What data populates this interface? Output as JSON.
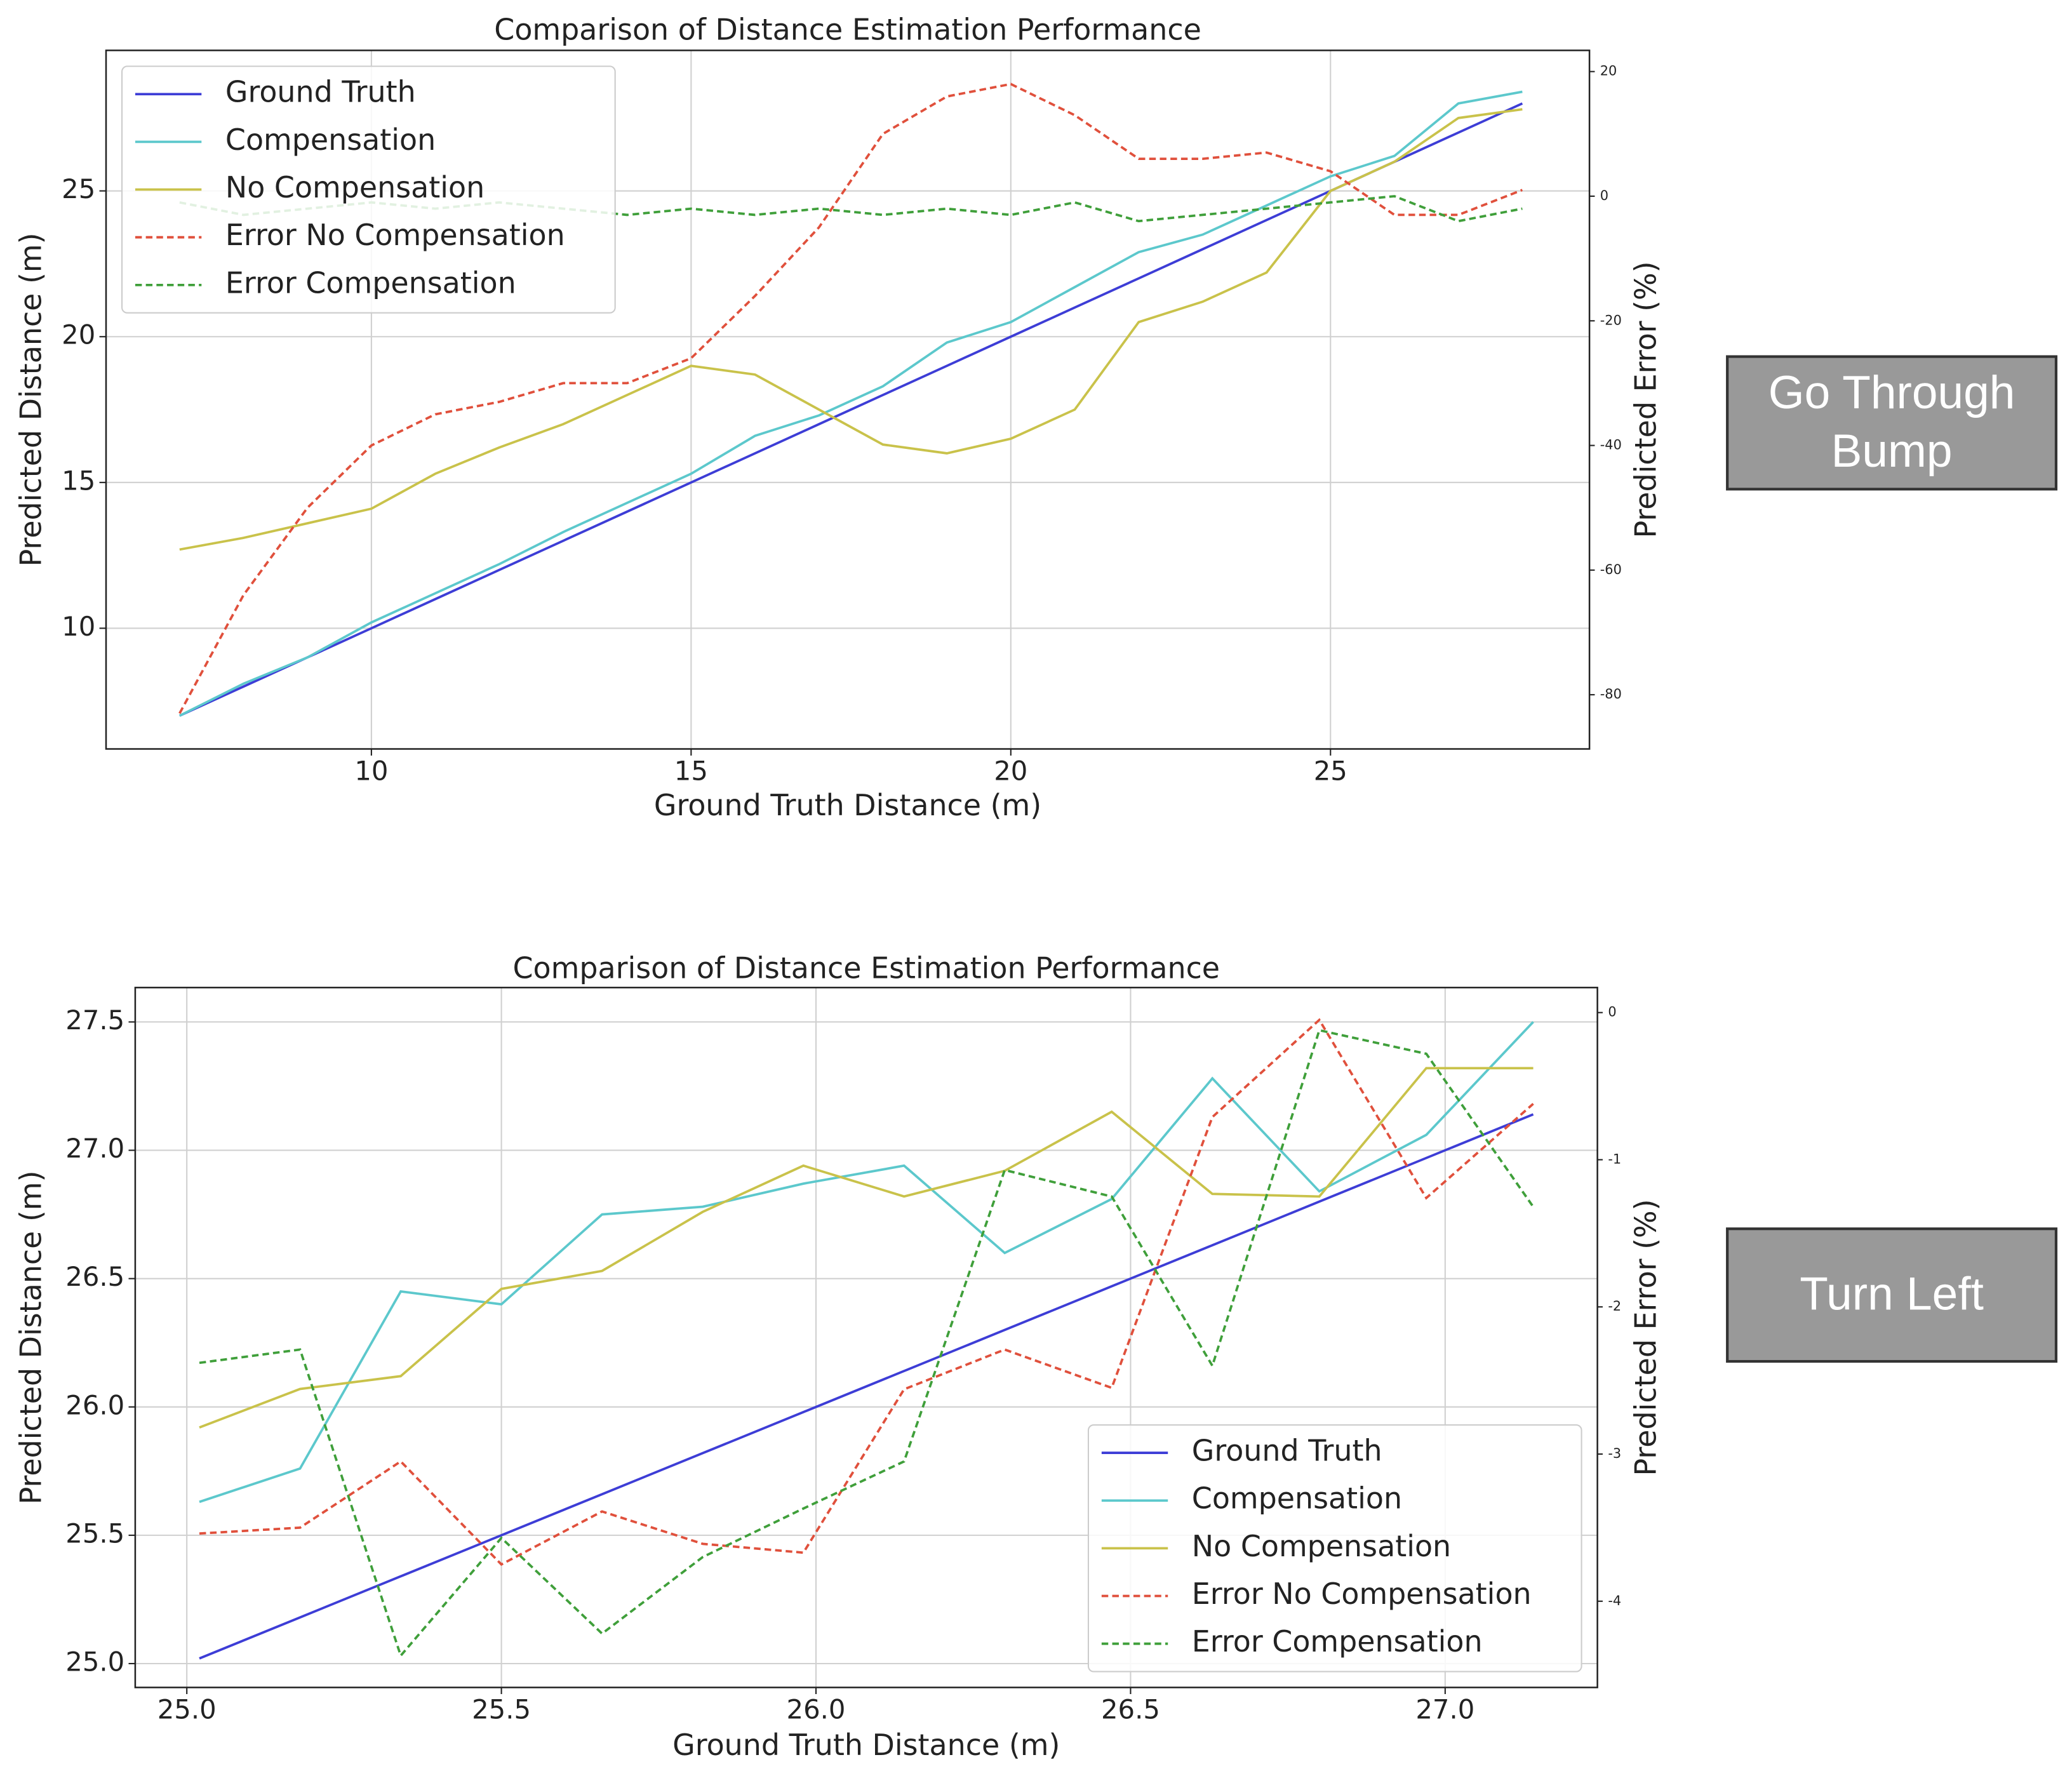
{
  "chart_data": [
    {
      "type": "line",
      "title": "Comparison of Distance Estimation Performance",
      "xlabel": "Ground Truth Distance (m)",
      "ylabel": "Predicted Distance (m)",
      "y2label": "Predicted Error (%)",
      "x": [
        7,
        8,
        9,
        10,
        11,
        12,
        13,
        14,
        15,
        16,
        17,
        18,
        19,
        20,
        21,
        22,
        23,
        24,
        25,
        26,
        27,
        28
      ],
      "series": [
        {
          "name": "Ground Truth",
          "color": "#3d3dd6",
          "linestyle": "solid",
          "values": [
            7,
            8,
            9,
            10,
            11,
            12,
            13,
            14,
            15,
            16,
            17,
            18,
            19,
            20,
            21,
            22,
            23,
            24,
            25,
            26,
            27,
            28
          ]
        },
        {
          "name": "Compensation",
          "color": "#5cc8cc",
          "linestyle": "solid",
          "values": [
            7.0,
            8.1,
            9.0,
            10.2,
            11.2,
            12.2,
            13.3,
            14.3,
            15.3,
            16.6,
            17.3,
            18.3,
            19.8,
            20.5,
            21.7,
            22.9,
            23.5,
            24.5,
            25.5,
            26.2,
            28.0,
            28.4
          ]
        },
        {
          "name": "No Compensation",
          "color": "#c9c24a",
          "linestyle": "solid",
          "values": [
            12.7,
            13.1,
            13.6,
            14.1,
            15.3,
            16.2,
            17.0,
            18.0,
            19.0,
            18.7,
            17.5,
            16.3,
            16.0,
            16.5,
            17.5,
            20.5,
            21.2,
            22.2,
            25.0,
            26.0,
            27.5,
            27.8
          ]
        },
        {
          "name": "Error No Compensation",
          "color": "#e0503c",
          "linestyle": "dashed",
          "axis": "y2",
          "values": [
            -83,
            -64,
            -50,
            -40,
            -35,
            -33,
            -30,
            -30,
            -26,
            -16,
            -5,
            10,
            16,
            18,
            13,
            6,
            6,
            7,
            4,
            -3,
            -3,
            1
          ]
        },
        {
          "name": "Error Compensation",
          "color": "#3f9f3a",
          "linestyle": "dashed",
          "axis": "y2",
          "values": [
            -1,
            -3,
            -2,
            -1,
            -2,
            -1,
            -2,
            -3,
            -2,
            -3,
            -2,
            -3,
            -2,
            -3,
            -1,
            -4,
            -3,
            -2,
            -1,
            0,
            -4,
            -2
          ]
        }
      ],
      "xlim": [
        5.85,
        29.05
      ],
      "xticks": [
        10,
        15,
        20,
        25
      ],
      "ylim": [
        5.86,
        29.82
      ],
      "yticks": [
        10,
        15,
        20,
        25
      ],
      "y2lim": [
        -88.7,
        23.4
      ],
      "y2ticks": [
        20,
        0,
        -20,
        -40,
        -60,
        -80
      ],
      "grid": true,
      "legend": "upper left",
      "annotation": "Go Through Bump"
    },
    {
      "type": "line",
      "title": "Comparison of Distance Estimation Performance",
      "xlabel": "Ground Truth Distance (m)",
      "ylabel": "Predicted Distance (m)",
      "y2label": "Predicted Error (%)",
      "x": [
        25.02,
        25.18,
        25.34,
        25.5,
        25.66,
        25.82,
        25.98,
        26.14,
        26.3,
        26.47,
        26.63,
        26.8,
        26.97,
        27.14
      ],
      "series": [
        {
          "name": "Ground Truth",
          "color": "#3d3dd6",
          "linestyle": "solid",
          "values": [
            25.02,
            25.18,
            25.34,
            25.5,
            25.66,
            25.82,
            25.98,
            26.14,
            26.3,
            26.47,
            26.63,
            26.8,
            26.97,
            27.14
          ]
        },
        {
          "name": "Compensation",
          "color": "#5cc8cc",
          "linestyle": "solid",
          "values": [
            25.63,
            25.76,
            26.45,
            26.4,
            26.75,
            26.78,
            26.87,
            26.94,
            26.6,
            26.81,
            27.28,
            26.84,
            27.06,
            27.5
          ]
        },
        {
          "name": "No Compensation",
          "color": "#c9c24a",
          "linestyle": "solid",
          "values": [
            25.92,
            26.07,
            26.12,
            26.46,
            26.53,
            26.76,
            26.94,
            26.82,
            26.92,
            27.15,
            26.83,
            26.82,
            27.32,
            27.32
          ]
        },
        {
          "name": "Error No Compensation",
          "color": "#e0503c",
          "linestyle": "dashed",
          "axis": "y2",
          "values": [
            -3.54,
            -3.5,
            -3.05,
            -3.75,
            -3.39,
            -3.61,
            -3.67,
            -2.56,
            -2.29,
            -2.55,
            -0.71,
            -0.05,
            -1.26,
            -0.62
          ]
        },
        {
          "name": "Error Compensation",
          "color": "#3f9f3a",
          "linestyle": "dashed",
          "axis": "y2",
          "values": [
            -2.38,
            -2.29,
            -4.37,
            -3.57,
            -4.22,
            -3.7,
            -3.37,
            -3.05,
            -1.07,
            -1.25,
            -2.4,
            -0.12,
            -0.28,
            -1.32
          ]
        }
      ],
      "xlim": [
        24.918,
        27.242
      ],
      "xticks": [
        {
          "value": 25,
          "label": "25.0"
        },
        25.5,
        {
          "value": 26,
          "label": "26.0"
        },
        26.5,
        {
          "value": 27,
          "label": "27.0"
        }
      ],
      "ylim": [
        24.907,
        27.634
      ],
      "yticks": [
        {
          "value": 25,
          "label": "25.0"
        },
        25.5,
        {
          "value": 26,
          "label": "26.0"
        },
        26.5,
        {
          "value": 27,
          "label": "27.0"
        },
        27.5
      ],
      "y2lim": [
        -4.586,
        0.17
      ],
      "y2ticks": [
        0,
        -1,
        -2,
        -3,
        -4
      ],
      "grid": true,
      "legend": "lower right",
      "annotation": "Turn Left"
    }
  ]
}
